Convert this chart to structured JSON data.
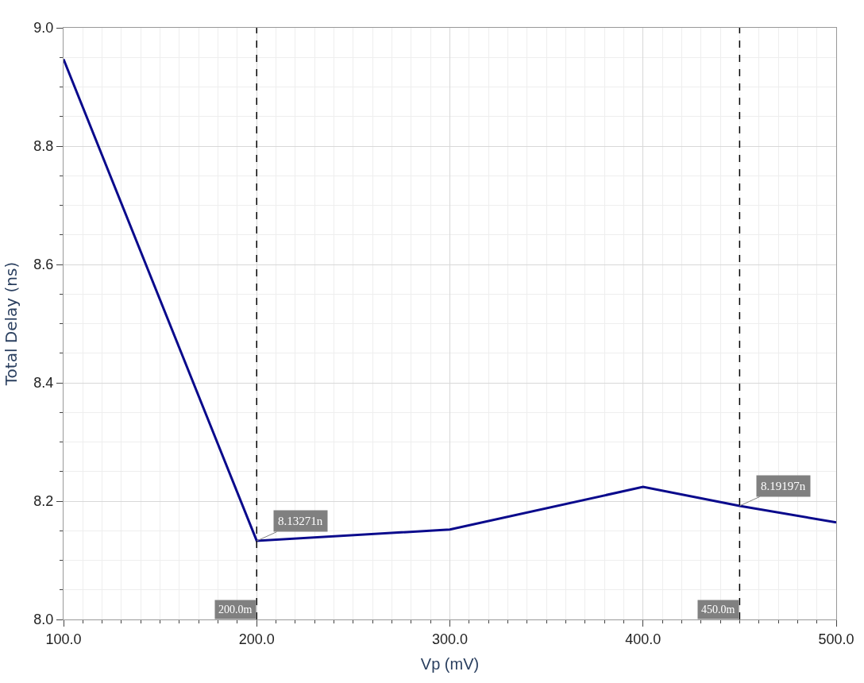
{
  "chart_data": {
    "type": "line",
    "xlabel": "Vp (mV)",
    "ylabel": "Total Delay (ns)",
    "x": [
      100,
      200,
      300,
      400,
      450,
      500
    ],
    "series": [
      {
        "color": "#0a0a8c",
        "values": [
          8.947,
          8.133,
          8.152,
          8.224,
          8.192,
          8.164
        ]
      }
    ],
    "xlim": [
      100,
      500
    ],
    "xticks": [
      {
        "value": 100,
        "label": "100.0"
      },
      {
        "value": 200,
        "label": "200.0"
      },
      {
        "value": 300,
        "label": "300.0"
      },
      {
        "value": 400,
        "label": "400.0"
      },
      {
        "value": 500,
        "label": "500.0"
      }
    ],
    "ylim": [
      8.0,
      9.0
    ],
    "yticks": [
      {
        "value": 8.0,
        "label": "8.0"
      },
      {
        "value": 8.2,
        "label": "8.2"
      },
      {
        "value": 8.4,
        "label": "8.4"
      },
      {
        "value": 8.6,
        "label": "8.6"
      },
      {
        "value": 8.8,
        "label": "8.8"
      },
      {
        "value": 9.0,
        "label": "9.0"
      }
    ],
    "grid": true,
    "marker": "none",
    "line_style": "solid",
    "ref_lines": [
      {
        "axis": "x",
        "value": 200,
        "label": "200.0m",
        "color": "#000000",
        "line_style": "dashed"
      },
      {
        "axis": "x",
        "value": 450,
        "label": "450.0m",
        "color": "#000000",
        "line_style": "dashed"
      }
    ],
    "annotations": [
      {
        "text": "8.13271n",
        "x": 200,
        "y": 8.13271
      },
      {
        "text": "8.19197n",
        "x": 450,
        "y": 8.19197
      }
    ]
  }
}
